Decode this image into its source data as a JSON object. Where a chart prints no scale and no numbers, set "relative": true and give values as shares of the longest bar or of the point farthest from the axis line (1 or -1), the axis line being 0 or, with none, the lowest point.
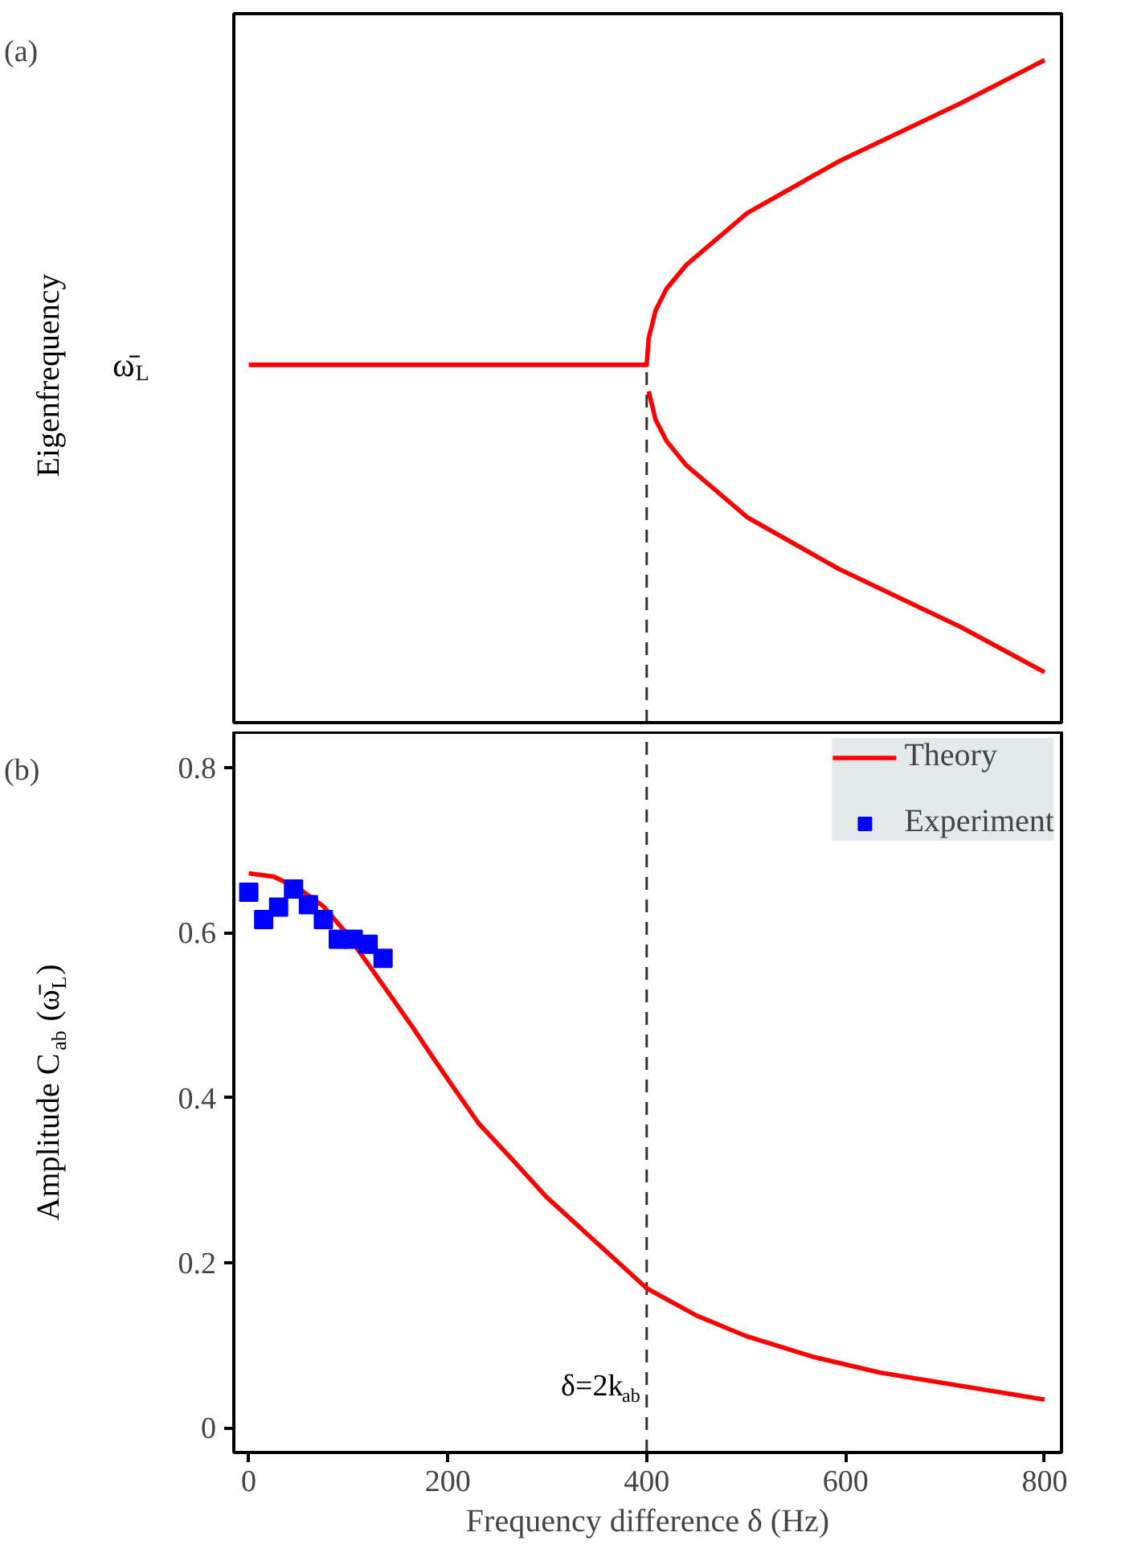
{
  "chart_data": [
    {
      "type": "line",
      "ylabel": "Eigenfrequency",
      "relative": true,
      "xlim": [
        -15,
        817
      ],
      "xticks": [
        0,
        200,
        400,
        600,
        800
      ],
      "tick_labels": false,
      "annotations": [
        "(a)",
        "ω̄$_{L}$"
      ],
      "ref_lines": [
        {
          "axis": "x",
          "value": 400,
          "line_style": "dashed",
          "color": "#333333"
        }
      ],
      "series": [
        {
          "color": "#ff0000",
          "x": [
            0,
            400,
            402,
            409,
            420,
            440,
            501,
            593,
            716,
            800
          ],
          "values": [
            0.54,
            0.54,
            0.58,
            0.622,
            0.655,
            0.691,
            0.769,
            0.847,
            0.935,
            1
          ]
        },
        {
          "color": "#ff0000",
          "x": [
            402,
            409,
            420,
            440,
            501,
            593,
            716,
            800
          ],
          "values": [
            0.5,
            0.457,
            0.425,
            0.388,
            0.31,
            0.232,
            0.144,
            0.076
          ]
        }
      ]
    },
    {
      "type": "line",
      "xlabel": "Frequency difference δ (Hz)",
      "ylabel": "Amplitude C$_{ab}$ (ω̄$_{L}$)",
      "xlim": [
        -15,
        817
      ],
      "xticks": [
        0,
        200,
        400,
        600,
        800
      ],
      "ylim": [
        -0.03,
        0.843
      ],
      "yticks": [
        0,
        0.2,
        0.4,
        0.6,
        0.8
      ],
      "legend": "top right",
      "annotations": [
        "(b)",
        {
          "text": "δ=2k$_{ab}$",
          "x": 400,
          "y": 0.05
        }
      ],
      "ref_lines": [
        {
          "axis": "x",
          "value": 400,
          "line_style": "dashed",
          "color": "#333333"
        }
      ],
      "series": [
        {
          "name": "Theory",
          "type": "line",
          "marker": "none",
          "color": "#ff0000",
          "x": [
            0,
            25,
            50,
            75,
            97,
            120,
            144,
            165,
            185,
            205,
            231,
            265,
            299,
            339,
            400,
            450,
            500,
            567,
            634,
            720,
            800
          ],
          "values": [
            0.672,
            0.668,
            0.654,
            0.632,
            0.601,
            0.562,
            0.521,
            0.485,
            0.449,
            0.414,
            0.369,
            0.325,
            0.28,
            0.236,
            0.169,
            0.136,
            0.111,
            0.086,
            0.067,
            0.05,
            0.034
          ]
        },
        {
          "name": "Experiment",
          "type": "scatter",
          "marker": "square",
          "color": "#0000ff",
          "x": [
            0,
            15,
            30,
            45,
            60,
            75,
            90,
            105,
            120,
            135
          ],
          "values": [
            0.649,
            0.616,
            0.631,
            0.653,
            0.634,
            0.616,
            0.592,
            0.592,
            0.586,
            0.569
          ]
        }
      ]
    }
  ]
}
